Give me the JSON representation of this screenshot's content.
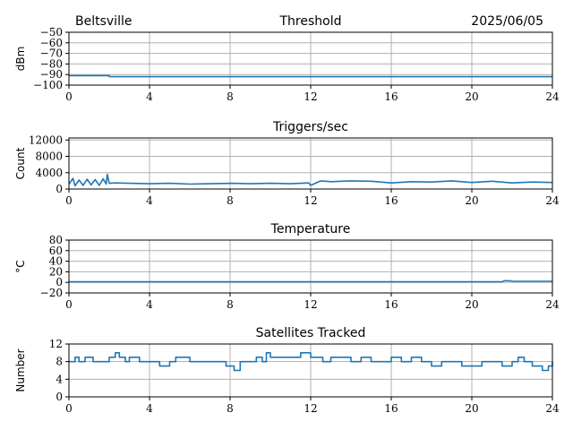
{
  "header": {
    "station": "Beltsville",
    "date": "2025/06/05"
  },
  "colors": {
    "series": "#1f77b4",
    "grid": "#b0b0b0"
  },
  "chart_data": [
    {
      "type": "line",
      "title": "Threshold",
      "ylabel": "dBm",
      "xlim": [
        0,
        24
      ],
      "ylim": [
        -100,
        -50
      ],
      "xticks": [
        0,
        4,
        8,
        12,
        16,
        20,
        24
      ],
      "yticks": [
        -100,
        -90,
        -80,
        -70,
        -60,
        -50
      ],
      "ytick_labels": [
        "−100",
        "−90",
        "−80",
        "−70",
        "−60",
        "−50"
      ],
      "grid": true,
      "series": [
        {
          "x": [
            0,
            2,
            2,
            24
          ],
          "y": [
            -91,
            -91,
            -92,
            -92
          ]
        }
      ]
    },
    {
      "type": "line",
      "title": "Triggers/sec",
      "ylabel": "Count",
      "xlim": [
        0,
        24
      ],
      "ylim": [
        0,
        12500
      ],
      "xticks": [
        0,
        4,
        8,
        12,
        16,
        20,
        24
      ],
      "yticks": [
        0,
        4000,
        8000,
        12000
      ],
      "ytick_labels": [
        "0",
        "4000",
        "8000",
        "12000"
      ],
      "grid": true,
      "series": [
        {
          "x": [
            0,
            0.2,
            0.3,
            0.5,
            0.7,
            0.9,
            1.1,
            1.3,
            1.5,
            1.7,
            1.85,
            1.9,
            2.0,
            2.3,
            3,
            4,
            5,
            6,
            7,
            8,
            9,
            10,
            11,
            11.9,
            12,
            12.5,
            13,
            14,
            15,
            16,
            17,
            18,
            19,
            20,
            21,
            22,
            23,
            24
          ],
          "y": [
            1200,
            2600,
            800,
            2200,
            900,
            2400,
            1000,
            2300,
            900,
            2500,
            1200,
            3600,
            1400,
            1500,
            1400,
            1300,
            1400,
            1200,
            1300,
            1400,
            1300,
            1400,
            1300,
            1500,
            900,
            2000,
            1800,
            2000,
            1900,
            1500,
            1800,
            1700,
            2000,
            1600,
            1900,
            1500,
            1700,
            1600
          ]
        }
      ]
    },
    {
      "type": "line",
      "title": "Temperature",
      "ylabel": "°C",
      "xlim": [
        0,
        24
      ],
      "ylim": [
        -20,
        80
      ],
      "xticks": [
        0,
        4,
        8,
        12,
        16,
        20,
        24
      ],
      "yticks": [
        -20,
        0,
        20,
        40,
        60,
        80
      ],
      "ytick_labels": [
        "−20",
        "0",
        "20",
        "40",
        "60",
        "80"
      ],
      "grid": true,
      "series": [
        {
          "x": [
            0,
            21.5,
            21.6,
            21.9,
            22.0,
            24
          ],
          "y": [
            1,
            1,
            3,
            3,
            2,
            2
          ]
        }
      ]
    },
    {
      "type": "line",
      "title": "Satellites Tracked",
      "ylabel": "Number",
      "xlim": [
        0,
        24
      ],
      "ylim": [
        0,
        12
      ],
      "xticks": [
        0,
        4,
        8,
        12,
        16,
        20,
        24
      ],
      "yticks": [
        0,
        4,
        8,
        12
      ],
      "ytick_labels": [
        "0",
        "4",
        "8",
        "12"
      ],
      "grid": true,
      "series": [
        {
          "step": true,
          "x": [
            0,
            0.3,
            0.5,
            0.8,
            1.2,
            2.0,
            2.3,
            2.5,
            2.8,
            3.0,
            3.5,
            4.0,
            4.5,
            4.8,
            5.0,
            5.3,
            6.0,
            6.5,
            7.0,
            7.8,
            8.2,
            8.5,
            9.0,
            9.3,
            9.6,
            9.8,
            10.0,
            10.5,
            11.0,
            11.5,
            12.0,
            12.3,
            12.6,
            13.0,
            13.5,
            14.0,
            14.5,
            15.0,
            15.5,
            16.0,
            16.5,
            17.0,
            17.5,
            18.0,
            18.5,
            19.0,
            19.5,
            20.0,
            20.5,
            21.0,
            21.5,
            22.0,
            22.3,
            22.6,
            23.0,
            23.5,
            23.8,
            24
          ],
          "y": [
            8,
            9,
            8,
            9,
            8,
            9,
            10,
            9,
            8,
            9,
            8,
            8,
            7,
            7,
            8,
            9,
            8,
            8,
            8,
            7,
            6,
            8,
            8,
            9,
            8,
            10,
            9,
            9,
            9,
            10,
            9,
            9,
            8,
            9,
            9,
            8,
            9,
            8,
            8,
            9,
            8,
            9,
            8,
            7,
            8,
            8,
            7,
            7,
            8,
            8,
            7,
            8,
            9,
            8,
            7,
            6,
            7,
            8
          ]
        }
      ]
    }
  ]
}
